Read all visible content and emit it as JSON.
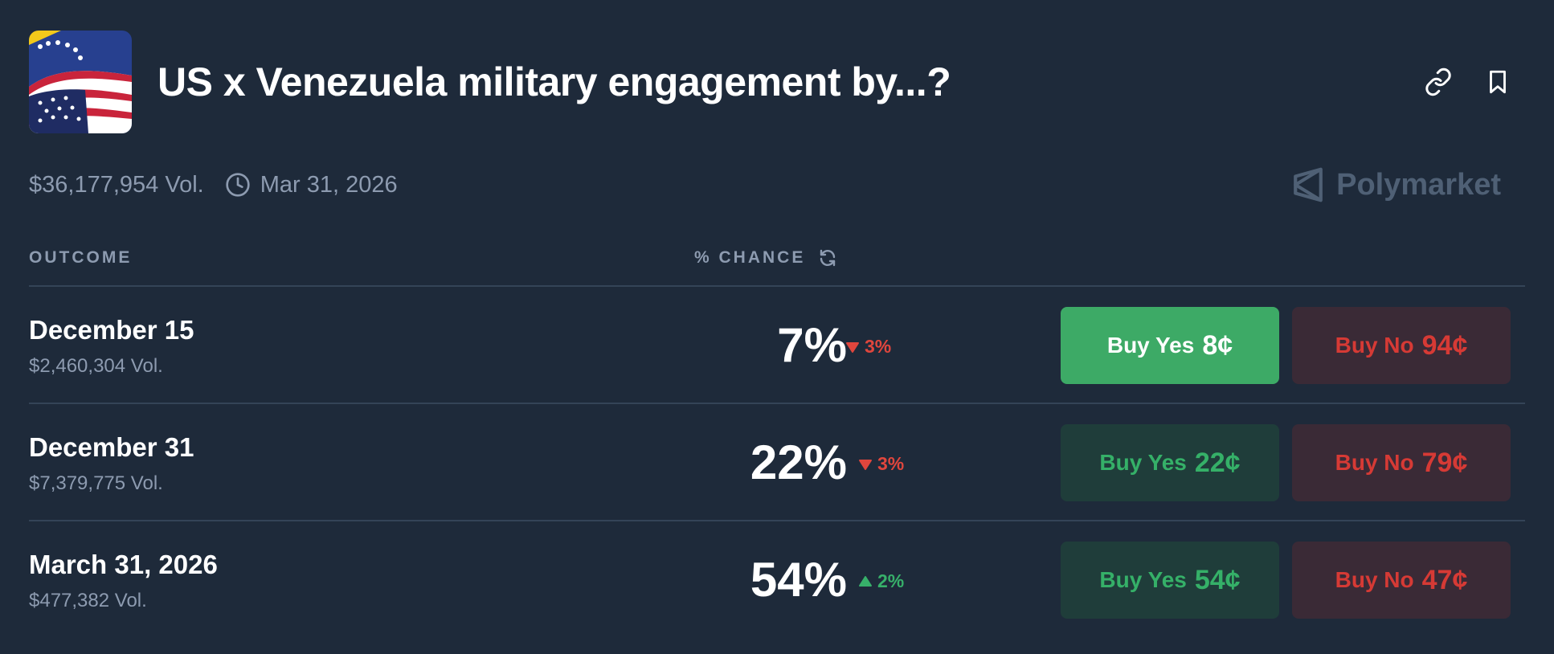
{
  "market": {
    "title": "US x Venezuela military engagement by...?",
    "volume": "$36,177,954 Vol.",
    "end_date": "Mar 31, 2026",
    "brand": "Polymarket"
  },
  "columns": {
    "outcome": "OUTCOME",
    "chance": "% CHANCE"
  },
  "outcomes": [
    {
      "name": "December 15",
      "volume": "$2,460,304 Vol.",
      "chance": "7%",
      "change": "3%",
      "change_dir": "down",
      "yes_label": "Buy Yes",
      "yes_price": "8¢",
      "no_label": "Buy No",
      "no_price": "94¢",
      "yes_active": true
    },
    {
      "name": "December 31",
      "volume": "$7,379,775 Vol.",
      "chance": "22%",
      "change": "3%",
      "change_dir": "down",
      "yes_label": "Buy Yes",
      "yes_price": "22¢",
      "no_label": "Buy No",
      "no_price": "79¢",
      "yes_active": false
    },
    {
      "name": "March 31, 2026",
      "volume": "$477,382 Vol.",
      "chance": "54%",
      "change": "2%",
      "change_dir": "up",
      "yes_label": "Buy Yes",
      "yes_price": "54¢",
      "no_label": "Buy No",
      "no_price": "47¢",
      "yes_active": false
    }
  ],
  "colors": {
    "background": "#1e2a3a",
    "yes_green": "#3daa66",
    "no_red": "#d63a35",
    "change_down": "#e0463d",
    "change_up": "#37b06a"
  },
  "icons": {
    "link": "link-icon",
    "bookmark": "bookmark-icon",
    "clock": "clock-icon",
    "refresh": "refresh-icon",
    "brand": "polymarket-logo-icon"
  }
}
